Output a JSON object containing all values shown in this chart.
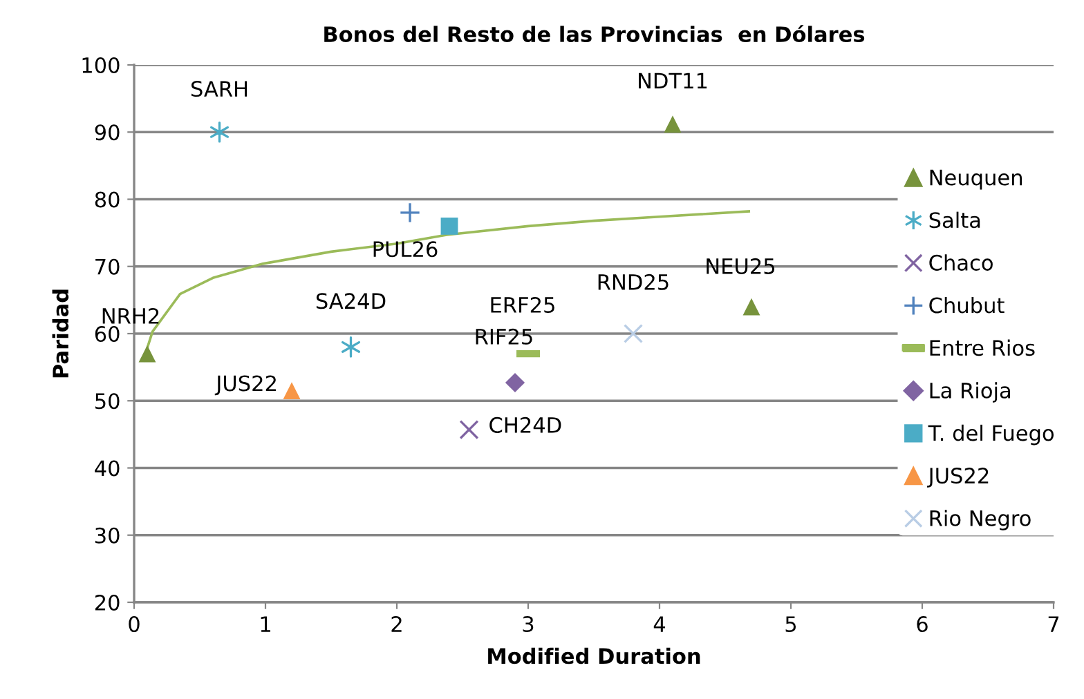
{
  "chart_data": {
    "type": "scatter",
    "title": "Bonos del Resto de las Provincias  en Dólares",
    "xlabel": "Modified Duration",
    "ylabel": "Paridad",
    "xlim": [
      0,
      7
    ],
    "xticks": [
      0,
      1,
      2,
      3,
      4,
      5,
      6,
      7
    ],
    "ylim": [
      20,
      100
    ],
    "yticks": [
      20,
      30,
      40,
      50,
      60,
      70,
      80,
      90,
      100
    ],
    "grid": "y",
    "legend": "right",
    "series": [
      {
        "name": "Neuquen",
        "color": "#77933c",
        "marker": "triangle",
        "x": [
          0.1,
          4.1,
          4.7
        ],
        "values": [
          57,
          91.2,
          64
        ]
      },
      {
        "name": "Salta",
        "color": "#4bacc6",
        "marker": "cross",
        "x": [
          0.65,
          1.65
        ],
        "values": [
          90,
          58
        ]
      },
      {
        "name": "Chaco",
        "color": "#8064a2",
        "marker": "cross",
        "x": [
          2.55
        ],
        "values": [
          45.7
        ]
      },
      {
        "name": "Chubut",
        "color": "#4f81bd",
        "marker": "plus",
        "x": [
          2.1
        ],
        "values": [
          78
        ]
      },
      {
        "name": "Entre Rios",
        "color": "#9bbb59",
        "x": [
          3.0
        ],
        "values": [
          57
        ]
      },
      {
        "name": "La Rioja",
        "color": "#8064a2",
        "marker": "diamond",
        "x": [
          2.9
        ],
        "values": [
          52.7
        ]
      },
      {
        "name": "T. del Fuego",
        "color": "#4bacc6",
        "marker": "square",
        "x": [
          2.4
        ],
        "values": [
          76
        ]
      },
      {
        "name": "JUS22",
        "color": "#f79646",
        "marker": "triangle",
        "x": [
          1.2
        ],
        "values": [
          51.5
        ]
      },
      {
        "name": "Rio Negro",
        "color": "#b9cde5",
        "marker": "cross",
        "x": [
          3.8
        ],
        "values": [
          60
        ]
      },
      {
        "type": "line",
        "color": "#9bbb59",
        "marker": "none",
        "x": [
          0.07,
          0.14,
          0.35,
          0.6,
          0.98,
          1.5,
          2.0,
          2.38,
          3.0,
          3.5,
          4.0,
          4.68
        ],
        "values": [
          56,
          60.3,
          65.9,
          68.3,
          70.4,
          72.2,
          73.4,
          74.7,
          76.0,
          76.8,
          77.4,
          78.2
        ]
      }
    ],
    "annotations": [
      {
        "text": "NRH2",
        "x": 0.1,
        "y": 57
      },
      {
        "text": "NDT11",
        "x": 4.1,
        "y": 91.2
      },
      {
        "text": "NEU25",
        "x": 4.7,
        "y": 64
      },
      {
        "text": "SARH",
        "x": 0.65,
        "y": 90
      },
      {
        "text": "SA24D",
        "x": 1.65,
        "y": 58
      },
      {
        "text": "CH24D",
        "x": 2.55,
        "y": 45.7
      },
      {
        "text": "ERF25",
        "x": 3.0,
        "y": 57
      },
      {
        "text": "RIF25",
        "x": 2.9,
        "y": 52.7
      },
      {
        "text": "PUL26",
        "x": 2.4,
        "y": 76
      },
      {
        "text": "JUS22",
        "x": 1.2,
        "y": 51.5
      },
      {
        "text": "RND25",
        "x": 3.8,
        "y": 60
      }
    ]
  }
}
